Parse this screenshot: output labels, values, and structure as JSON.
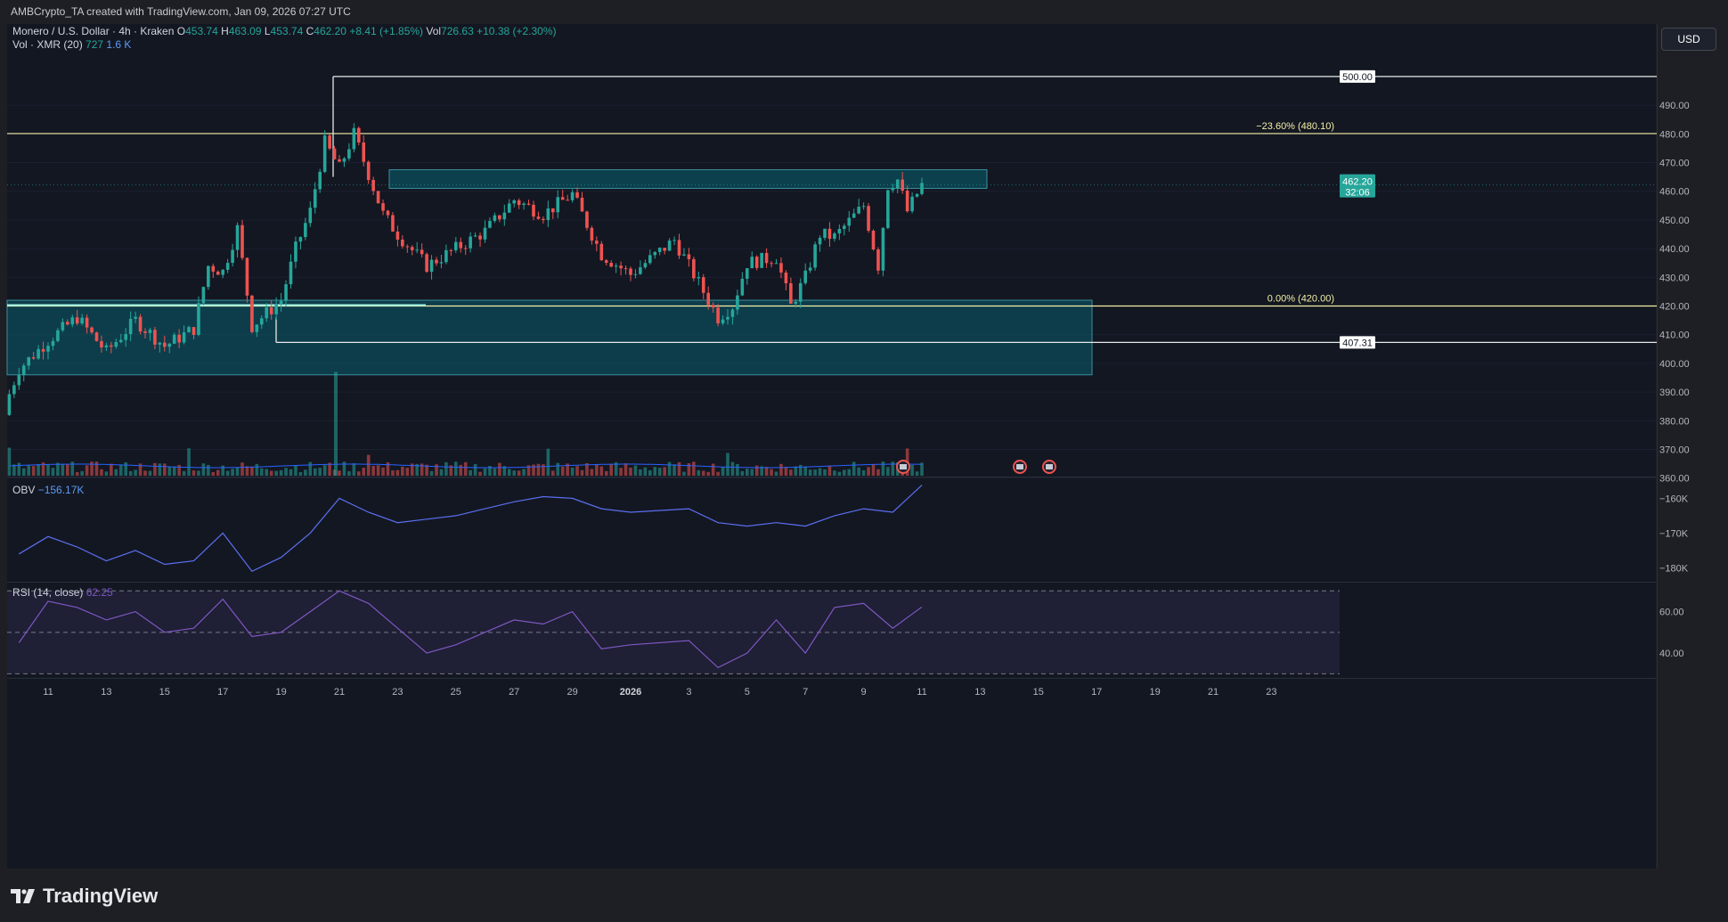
{
  "header": {
    "credit": "AMBCrypto_TA created with TradingView.com, Jan 09, 2026 07:27 UTC"
  },
  "legend": {
    "symbol": "Monero / U.S. Dollar · 4h · Kraken",
    "o_label": "O",
    "o_value": "453.74",
    "h_label": "H",
    "h_value": "463.09",
    "l_label": "L",
    "l_value": "453.74",
    "c_label": "C",
    "c_value": "462.20",
    "change": "+8.41 (+1.85%)",
    "vol_label": "Vol",
    "vol_value": "726.63",
    "vol_change": "+10.38 (+2.30%)",
    "vol_ma_label": "Vol · XMR (20)",
    "vol_ma_v1": "727",
    "vol_ma_v2": "1.6 K"
  },
  "currency_button": "USD",
  "price_label": {
    "value": "462.20",
    "countdown": "32:06"
  },
  "obv_legend": {
    "label": "OBV",
    "value": "−156.17K"
  },
  "rsi_legend": {
    "label": "RSI (14, close)",
    "value": "62.25"
  },
  "brand": "TradingView",
  "colors": {
    "up": "#26a69a",
    "down": "#ef5350",
    "zone": "#0b4f5c",
    "fib": "#f3efa6",
    "obv": "#5b6ff0",
    "rsi": "#7e57c2"
  },
  "chart_data": [
    {
      "type": "candlestick",
      "ylim": [
        356,
        505
      ],
      "y_ticks": [
        "490.00",
        "480.00",
        "470.00",
        "460.00",
        "450.00",
        "440.00",
        "430.00",
        "420.00",
        "410.00",
        "400.00",
        "390.00",
        "380.00",
        "370.00",
        "360.00"
      ],
      "x_ticks": [
        "11",
        "13",
        "15",
        "17",
        "19",
        "21",
        "23",
        "25",
        "27",
        "29",
        "2026",
        "3",
        "5",
        "7",
        "9",
        "11",
        "13",
        "15",
        "17",
        "19",
        "21",
        "23"
      ],
      "levels": [
        {
          "label": "500.00",
          "value": 500.0
        },
        {
          "label": "407.31",
          "value": 407.31
        }
      ],
      "fib_levels": [
        {
          "label": "−23.60% (480.10)",
          "value": 480.1
        },
        {
          "label": "0.00% (420.00)",
          "value": 420.0
        }
      ],
      "zones": [
        {
          "from": 461,
          "to": 467.5
        },
        {
          "from": 396,
          "to": 422
        }
      ],
      "waypoints": [
        {
          "date": "Dec 10",
          "close": 385
        },
        {
          "date": "Dec 10",
          "close": 398
        },
        {
          "date": "Dec 11",
          "close": 408
        },
        {
          "date": "Dec 12",
          "close": 416
        },
        {
          "date": "Dec 13",
          "close": 404
        },
        {
          "date": "Dec 14",
          "close": 415
        },
        {
          "date": "Dec 15",
          "close": 406
        },
        {
          "date": "Dec 16",
          "close": 412
        },
        {
          "date": "Dec 17",
          "close": 434
        },
        {
          "date": "Dec 17",
          "close": 432
        },
        {
          "date": "Dec 18",
          "close": 447
        },
        {
          "date": "Dec 18",
          "close": 413
        },
        {
          "date": "Dec 19",
          "close": 422
        },
        {
          "date": "Dec 20",
          "close": 440
        },
        {
          "date": "Dec 20",
          "close": 453
        },
        {
          "date": "Dec 21",
          "close": 477
        },
        {
          "date": "Dec 21",
          "close": 468
        },
        {
          "date": "Dec 22",
          "close": 480
        },
        {
          "date": "Dec 22",
          "close": 466
        },
        {
          "date": "Dec 23",
          "close": 452
        },
        {
          "date": "Dec 23",
          "close": 445
        },
        {
          "date": "Dec 24",
          "close": 434
        },
        {
          "date": "Dec 25",
          "close": 440
        },
        {
          "date": "Dec 26",
          "close": 446
        },
        {
          "date": "Dec 27",
          "close": 457
        },
        {
          "date": "Dec 28",
          "close": 452
        },
        {
          "date": "Dec 29",
          "close": 459
        },
        {
          "date": "Dec 30",
          "close": 438
        },
        {
          "date": "Dec 31",
          "close": 431
        },
        {
          "date": "Jan 1",
          "close": 443
        },
        {
          "date": "Jan 1",
          "close": 434
        },
        {
          "date": "Jan 2",
          "close": 416
        },
        {
          "date": "Jan 3",
          "close": 420
        },
        {
          "date": "Jan 3",
          "close": 435
        },
        {
          "date": "Jan 4",
          "close": 437
        },
        {
          "date": "Jan 5",
          "close": 420
        },
        {
          "date": "Jan 5",
          "close": 430
        },
        {
          "date": "Jan 6",
          "close": 445
        },
        {
          "date": "Jan 6",
          "close": 444
        },
        {
          "date": "Jan 7",
          "close": 455
        },
        {
          "date": "Jan 8",
          "close": 434
        },
        {
          "date": "Jan 8",
          "close": 462
        },
        {
          "date": "Jan 8",
          "close": 464
        },
        {
          "date": "Jan 9",
          "close": 453
        },
        {
          "date": "Jan 9",
          "close": 462.2
        }
      ]
    },
    {
      "type": "line",
      "title": "OBV",
      "y_ticks": [
        "−160K",
        "−170K",
        "−180K"
      ],
      "ylim": [
        -184,
        -154
      ],
      "waypoints": [
        {
          "date": "Dec 10",
          "value": -176
        },
        {
          "date": "Dec 11",
          "value": -171
        },
        {
          "date": "Dec 12",
          "value": -174
        },
        {
          "date": "Dec 13",
          "value": -178
        },
        {
          "date": "Dec 14",
          "value": -175
        },
        {
          "date": "Dec 15",
          "value": -179
        },
        {
          "date": "Dec 16",
          "value": -178
        },
        {
          "date": "Dec 17",
          "value": -170
        },
        {
          "date": "Dec 18",
          "value": -181
        },
        {
          "date": "Dec 19",
          "value": -177
        },
        {
          "date": "Dec 20",
          "value": -170
        },
        {
          "date": "Dec 21",
          "value": -160
        },
        {
          "date": "Dec 22",
          "value": -164
        },
        {
          "date": "Dec 23",
          "value": -167
        },
        {
          "date": "Dec 24",
          "value": -166
        },
        {
          "date": "Dec 25",
          "value": -165
        },
        {
          "date": "Dec 26",
          "value": -163
        },
        {
          "date": "Dec 27",
          "value": -161
        },
        {
          "date": "Dec 28",
          "value": -159.5
        },
        {
          "date": "Dec 29",
          "value": -160
        },
        {
          "date": "Dec 30",
          "value": -163
        },
        {
          "date": "Dec 31",
          "value": -164
        },
        {
          "date": "Jan 1",
          "value": -163
        },
        {
          "date": "Jan 2",
          "value": -167
        },
        {
          "date": "Jan 3",
          "value": -168
        },
        {
          "date": "Jan 4",
          "value": -167
        },
        {
          "date": "Jan 5",
          "value": -168
        },
        {
          "date": "Jan 6",
          "value": -165
        },
        {
          "date": "Jan 7",
          "value": -163
        },
        {
          "date": "Jan 8",
          "value": -164
        },
        {
          "date": "Jan 9",
          "value": -156.2
        }
      ]
    },
    {
      "type": "line",
      "title": "RSI (14, close)",
      "y_ticks": [
        "60.00",
        "40.00"
      ],
      "ylim": [
        28,
        74
      ],
      "bands": [
        70,
        50,
        30
      ],
      "waypoints": [
        {
          "date": "Dec 10",
          "value": 45
        },
        {
          "date": "Dec 11",
          "value": 65
        },
        {
          "date": "Dec 12",
          "value": 62
        },
        {
          "date": "Dec 13",
          "value": 56
        },
        {
          "date": "Dec 14",
          "value": 60
        },
        {
          "date": "Dec 15",
          "value": 50
        },
        {
          "date": "Dec 16",
          "value": 52
        },
        {
          "date": "Dec 17",
          "value": 66
        },
        {
          "date": "Dec 18",
          "value": 48
        },
        {
          "date": "Dec 19",
          "value": 50
        },
        {
          "date": "Dec 20",
          "value": 60
        },
        {
          "date": "Dec 21",
          "value": 70
        },
        {
          "date": "Dec 22",
          "value": 64
        },
        {
          "date": "Dec 23",
          "value": 52
        },
        {
          "date": "Dec 24",
          "value": 40
        },
        {
          "date": "Dec 25",
          "value": 44
        },
        {
          "date": "Dec 26",
          "value": 50
        },
        {
          "date": "Dec 27",
          "value": 56
        },
        {
          "date": "Dec 28",
          "value": 54
        },
        {
          "date": "Dec 29",
          "value": 60
        },
        {
          "date": "Dec 30",
          "value": 42
        },
        {
          "date": "Dec 31",
          "value": 44
        },
        {
          "date": "Jan 1",
          "value": 46
        },
        {
          "date": "Jan 2",
          "value": 33
        },
        {
          "date": "Jan 3",
          "value": 40
        },
        {
          "date": "Jan 4",
          "value": 56
        },
        {
          "date": "Jan 5",
          "value": 40
        },
        {
          "date": "Jan 6",
          "value": 62
        },
        {
          "date": "Jan 7",
          "value": 64
        },
        {
          "date": "Jan 8",
          "value": 52
        },
        {
          "date": "Jan 9",
          "value": 62.25
        }
      ]
    }
  ]
}
